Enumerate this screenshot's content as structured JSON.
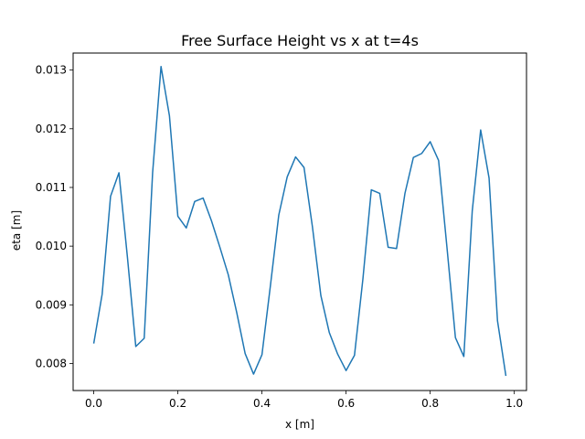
{
  "chart_data": {
    "type": "line",
    "title": "Free Surface Height vs x at t=4s",
    "xlabel": "x [m]",
    "ylabel": "eta [m]",
    "xlim": [
      -0.049,
      1.029
    ],
    "ylim": [
      0.00754,
      0.01329
    ],
    "xticks": [
      {
        "value": 0.0,
        "label": "0.0"
      },
      {
        "value": 0.2,
        "label": "0.2"
      },
      {
        "value": 0.4,
        "label": "0.4"
      },
      {
        "value": 0.6,
        "label": "0.6"
      },
      {
        "value": 0.8,
        "label": "0.8"
      },
      {
        "value": 1.0,
        "label": "1.0"
      }
    ],
    "yticks": [
      {
        "value": 0.008,
        "label": "0.008"
      },
      {
        "value": 0.009,
        "label": "0.009"
      },
      {
        "value": 0.01,
        "label": "0.010"
      },
      {
        "value": 0.011,
        "label": "0.011"
      },
      {
        "value": 0.012,
        "label": "0.012"
      },
      {
        "value": 0.013,
        "label": "0.013"
      }
    ],
    "grid": false,
    "series": [
      {
        "color": "#1f77b4",
        "x": [
          0.0,
          0.02,
          0.04,
          0.06,
          0.08,
          0.1,
          0.12,
          0.14,
          0.16,
          0.18,
          0.2,
          0.22,
          0.24,
          0.26,
          0.28,
          0.3,
          0.32,
          0.34,
          0.36,
          0.38,
          0.4,
          0.42,
          0.44,
          0.46,
          0.48,
          0.5,
          0.52,
          0.54,
          0.56,
          0.58,
          0.6,
          0.62,
          0.64,
          0.66,
          0.68,
          0.7,
          0.72,
          0.74,
          0.76,
          0.78,
          0.8,
          0.82,
          0.84,
          0.86,
          0.88,
          0.9,
          0.92,
          0.94,
          0.96,
          0.98
        ],
        "y": [
          0.00834,
          0.00918,
          0.01085,
          0.01125,
          0.00982,
          0.00829,
          0.00843,
          0.01125,
          0.01306,
          0.01222,
          0.01051,
          0.01031,
          0.01076,
          0.01082,
          0.01043,
          0.00998,
          0.00951,
          0.00887,
          0.00817,
          0.00782,
          0.00815,
          0.00932,
          0.01053,
          0.01118,
          0.01152,
          0.01134,
          0.01033,
          0.00916,
          0.00853,
          0.00816,
          0.00788,
          0.00814,
          0.00944,
          0.01096,
          0.0109,
          0.00998,
          0.00996,
          0.0109,
          0.01151,
          0.01158,
          0.01178,
          0.01146,
          0.00997,
          0.00844,
          0.00812,
          0.0106,
          0.01198,
          0.01116,
          0.00873,
          0.00779
        ]
      }
    ]
  }
}
